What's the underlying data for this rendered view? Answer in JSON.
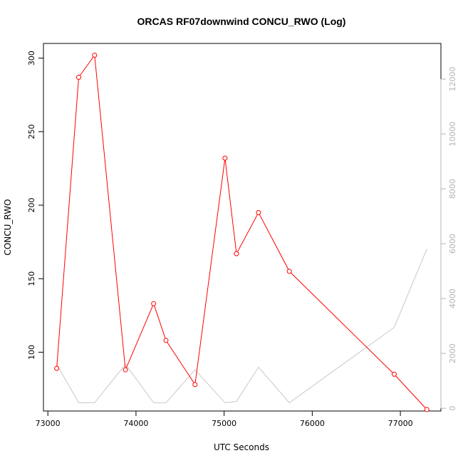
{
  "chart_data": {
    "type": "line",
    "title": "ORCAS RF07downwind CONCU_RWO (Log)",
    "xlabel": "UTC Seconds",
    "ylabel": "CONCU_RWO",
    "xlim": [
      72950,
      77460
    ],
    "ylim": [
      60,
      310
    ],
    "y2lim": [
      -100,
      13300
    ],
    "x_ticks": [
      73000,
      74000,
      75000,
      76000,
      77000
    ],
    "y_ticks": [
      100,
      150,
      200,
      250,
      300
    ],
    "y2_ticks": [
      0,
      2000,
      4000,
      6000,
      8000,
      10000,
      12000
    ],
    "grid": false,
    "series": [
      {
        "axis": "left",
        "color": "#ff0000",
        "marker": "open-circle",
        "x": [
          73100,
          73350,
          73530,
          73880,
          74200,
          74340,
          74670,
          75010,
          75140,
          75390,
          75740,
          76930,
          77300
        ],
        "y": [
          89,
          287,
          302,
          88,
          133,
          108,
          78,
          232,
          167,
          195,
          155,
          85,
          61
        ]
      },
      {
        "axis": "right",
        "color": "#c8c8c8",
        "marker": "none",
        "x": [
          73100,
          73350,
          73530,
          73880,
          74200,
          74340,
          74670,
          75010,
          75140,
          75390,
          75740,
          76930,
          77300
        ],
        "y": [
          1600,
          200,
          200,
          1600,
          200,
          200,
          1400,
          200,
          250,
          1500,
          200,
          2950,
          5800
        ]
      }
    ]
  }
}
